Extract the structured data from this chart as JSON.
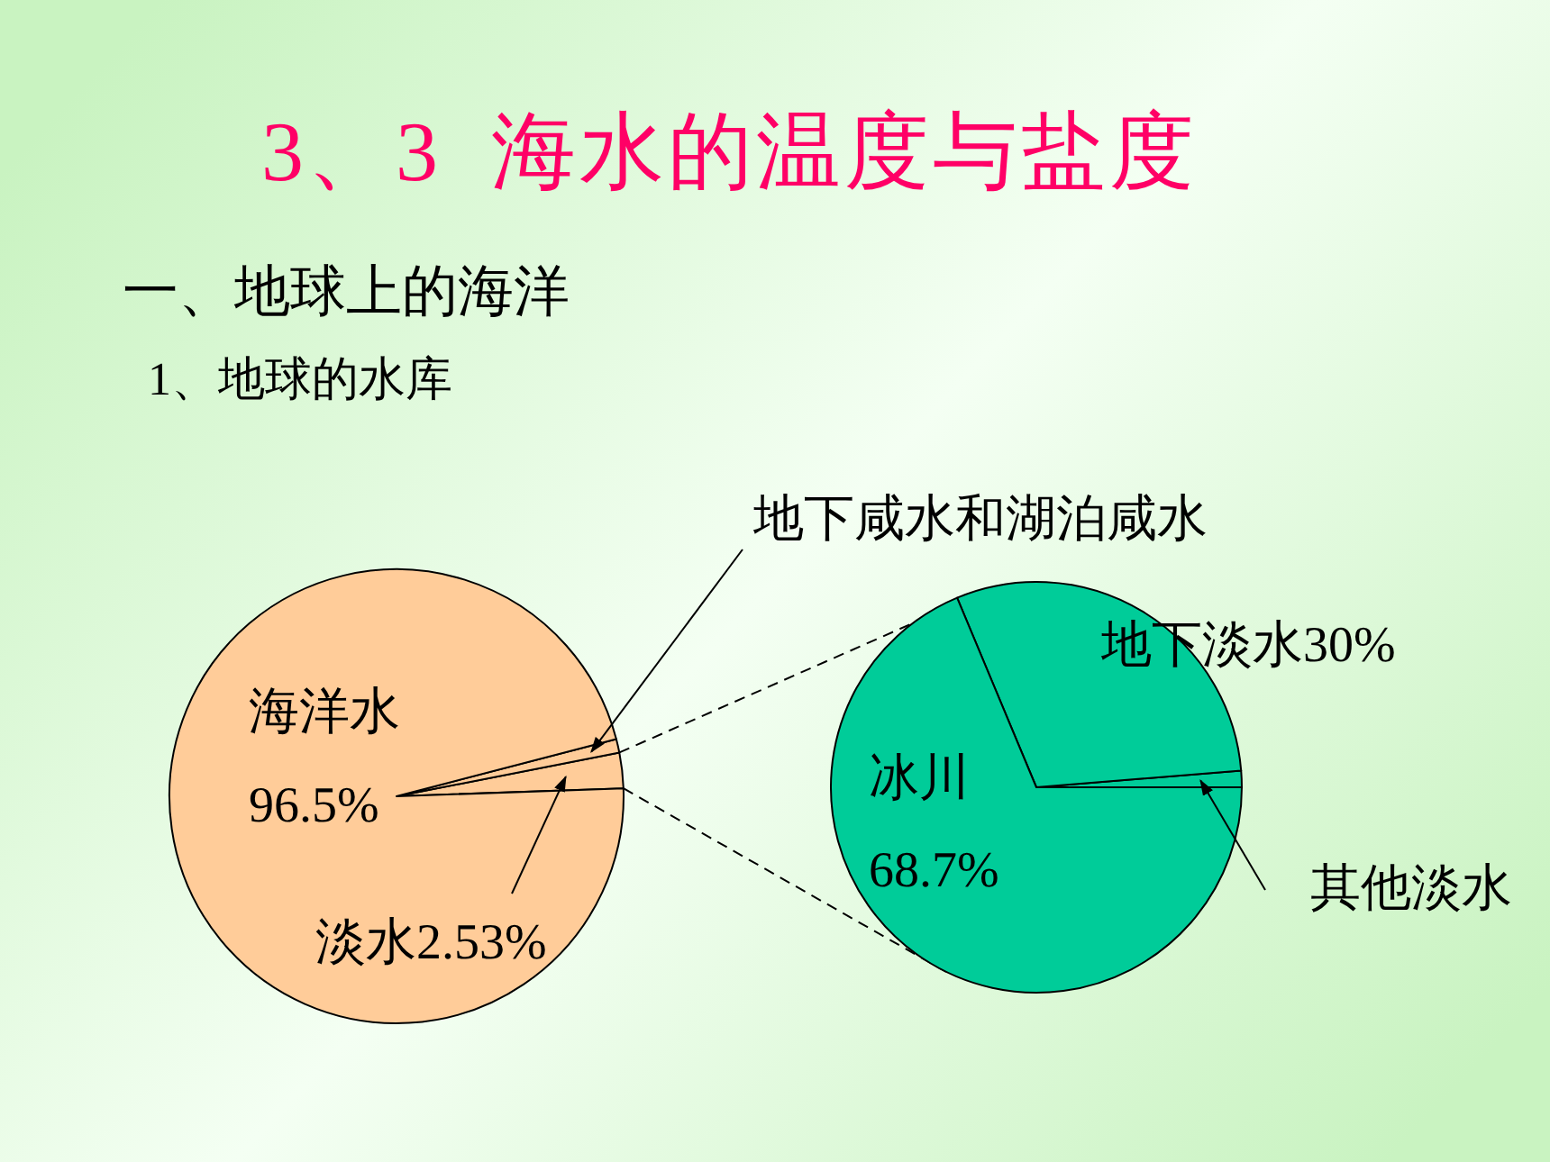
{
  "chart_data": [
    {
      "type": "pie",
      "title": "3、3  海水的温度与盐度",
      "subtitle": "一、地球上的海洋",
      "annotations": [
        "1、地球的水库"
      ],
      "categories": [
        "淡水",
        "地下咸水和湖泊咸水",
        "海洋水"
      ],
      "values": [
        2.53,
        0.97,
        96.5
      ],
      "value_labels": [
        "2.53%",
        null,
        "96.5%"
      ],
      "colors": [
        "#ffcc99",
        "#ffcc99",
        "#ffcc99"
      ]
    },
    {
      "type": "pie",
      "categories": [
        "其他淡水",
        "地下淡水",
        "冰川"
      ],
      "values": [
        1.3,
        30,
        68.7
      ],
      "value_labels": [
        null,
        "30%",
        "68.7%"
      ],
      "colors": [
        "#00cc99",
        "#00cc99",
        "#00cc99"
      ]
    }
  ]
}
